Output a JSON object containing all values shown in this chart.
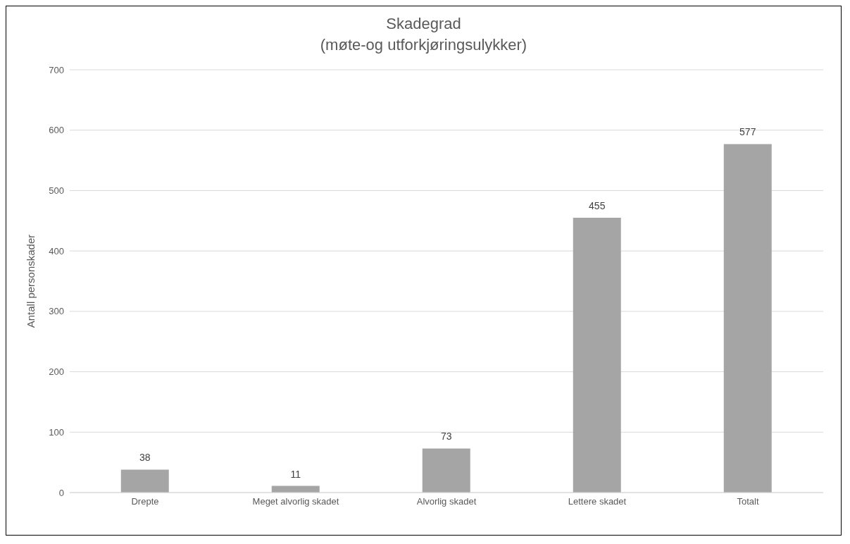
{
  "chart_data": {
    "type": "bar",
    "title": "Skadegrad",
    "subtitle": "(møte-og utforkjøringsulykker)",
    "ylabel": "Antall personskader",
    "categories": [
      "Drepte",
      "Meget alvorlig skadet",
      "Alvorlig skadet",
      "Lettere skadet",
      "Totalt"
    ],
    "values": [
      38,
      11,
      73,
      455,
      577
    ],
    "color": "#a5a5a5",
    "ylim": [
      0,
      700
    ],
    "yticks": [
      0,
      100,
      200,
      300,
      400,
      500,
      600,
      700
    ],
    "grid": "y",
    "data_labels": true,
    "legend": false
  }
}
